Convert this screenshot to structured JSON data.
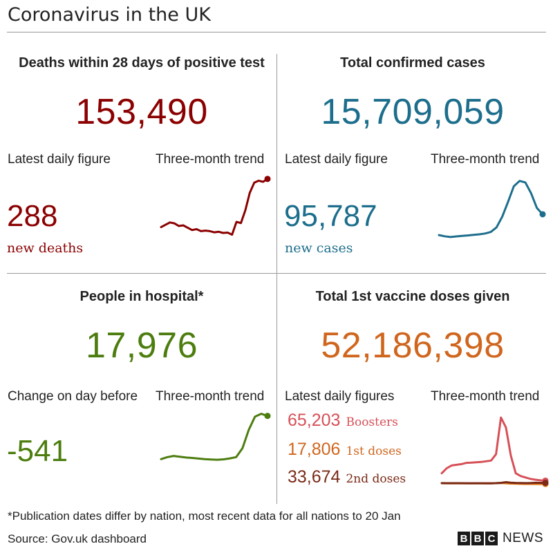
{
  "title": "Coronavirus in the UK",
  "colors": {
    "deaths": "#8b0000",
    "cases": "#1c6e8c",
    "hospital": "#4c7d0e",
    "vaccine": "#d0661e",
    "boosters": "#d65057",
    "first_doses": "#e07d1c",
    "second_doses": "#7a2a17"
  },
  "deaths": {
    "title": "Deaths within 28 days of positive test",
    "total": "153,490",
    "daily_label": "Latest daily figure",
    "trend_label": "Three-month trend",
    "daily_value": "288",
    "daily_unit": "new deaths"
  },
  "cases": {
    "title": "Total confirmed cases",
    "total": "15,709,059",
    "daily_label": "Latest daily figure",
    "trend_label": "Three-month trend",
    "daily_value": "95,787",
    "daily_unit": "new cases"
  },
  "hospital": {
    "title": "People in hospital*",
    "total": "17,976",
    "daily_label": "Change on day before",
    "trend_label": "Three-month trend",
    "daily_value": "-541"
  },
  "vaccine": {
    "title": "Total 1st vaccine doses given",
    "total": "52,186,398",
    "daily_label": "Latest daily figures",
    "trend_label": "Three-month trend",
    "rows": [
      {
        "value": "65,203",
        "label": "Boosters"
      },
      {
        "value": "17,806",
        "label": "1st doses"
      },
      {
        "value": "33,674",
        "label": "2nd doses"
      }
    ]
  },
  "footnote": "*Publication dates differ by nation, most recent data for all nations to 20 Jan",
  "source": "Source: Gov.uk dashboard",
  "branding": {
    "b1": "B",
    "b2": "B",
    "b3": "C",
    "news": "NEWS"
  },
  "chart_data": [
    {
      "type": "line",
      "title": "Deaths within 28 days of positive test",
      "series": [
        {
          "values": [
            122,
            130,
            138,
            135,
            126,
            128,
            120,
            112,
            115,
            108,
            110,
            108,
            104,
            106,
            102,
            103,
            96,
            140,
            136,
            180,
            240,
            275,
            282,
            278,
            288
          ]
        }
      ]
    },
    {
      "type": "line",
      "title": "Total confirmed cases",
      "series": [
        {
          "values": [
            42000,
            39000,
            37000,
            38500,
            40000,
            41000,
            42500,
            44000,
            46000,
            50000,
            62000,
            90000,
            128000,
            168000,
            182000,
            178000,
            150000,
            112000,
            95787
          ]
        }
      ]
    },
    {
      "type": "line",
      "title": "People in hospital",
      "series": [
        {
          "values": [
            7300,
            7800,
            8100,
            7900,
            7700,
            7600,
            7450,
            7300,
            7200,
            7150,
            7250,
            7500,
            7800,
            10000,
            14500,
            17800,
            18500,
            17976
          ]
        }
      ]
    },
    {
      "type": "line",
      "title": "Total 1st vaccine doses given",
      "series": [
        {
          "name": "Boosters",
          "values": [
            170000,
            240000,
            280000,
            290000,
            300000,
            318000,
            320000,
            325000,
            330000,
            340000,
            350000,
            440000,
            960000,
            820000,
            420000,
            170000,
            130000,
            110000,
            90000,
            78000,
            70000,
            65203
          ]
        },
        {
          "name": "1st doses",
          "values": [
            28000,
            27500,
            27000,
            27000,
            26500,
            26500,
            26000,
            26000,
            26000,
            25500,
            25500,
            30000,
            32000,
            28000,
            24000,
            22000,
            20000,
            19000,
            18500,
            18000,
            17900,
            17806
          ]
        },
        {
          "name": "2nd doses",
          "values": [
            30000,
            29500,
            29000,
            29000,
            29000,
            28500,
            28500,
            28500,
            28000,
            28000,
            28000,
            29000,
            34000,
            44000,
            37000,
            33000,
            31000,
            30000,
            32000,
            35000,
            34000,
            33674
          ]
        }
      ]
    }
  ]
}
